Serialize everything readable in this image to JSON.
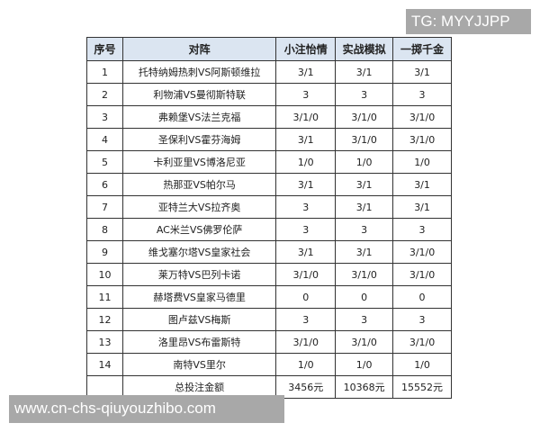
{
  "overlay_tag": "TG: MYYJJPP",
  "website": "www.cn-chs-qiuyouzhibo.com",
  "colors": {
    "header_bg": "#dbe5f1",
    "overlay_bg": "#a8a8a8"
  },
  "table": {
    "headers": [
      "序号",
      "对阵",
      "小注怡情",
      "实战模拟",
      "一掷千金"
    ],
    "rows": [
      [
        "1",
        "托特纳姆热刺VS阿斯顿维拉",
        "3/1",
        "3/1",
        "3/1"
      ],
      [
        "2",
        "利物浦VS曼彻斯特联",
        "3",
        "3",
        "3"
      ],
      [
        "3",
        "弗赖堡VS法兰克福",
        "3/1/0",
        "3/1/0",
        "3/1/0"
      ],
      [
        "4",
        "圣保利VS霍芬海姆",
        "3/1",
        "3/1/0",
        "3/1/0"
      ],
      [
        "5",
        "卡利亚里VS博洛尼亚",
        "1/0",
        "1/0",
        "1/0"
      ],
      [
        "6",
        "热那亚VS帕尔马",
        "3/1",
        "3/1",
        "3/1"
      ],
      [
        "7",
        "亚特兰大VS拉齐奥",
        "3",
        "3/1",
        "3/1"
      ],
      [
        "8",
        "AC米兰VS佛罗伦萨",
        "3",
        "3",
        "3"
      ],
      [
        "9",
        "维戈塞尔塔VS皇家社会",
        "3/1",
        "3/1",
        "3/1/0"
      ],
      [
        "10",
        "莱万特VS巴列卡诺",
        "3/1/0",
        "3/1/0",
        "3/1/0"
      ],
      [
        "11",
        "赫塔费VS皇家马德里",
        "0",
        "0",
        "0"
      ],
      [
        "12",
        "图卢兹VS梅斯",
        "3",
        "3",
        "3"
      ],
      [
        "13",
        "洛里昂VS布雷斯特",
        "3/1/0",
        "3/1/0",
        "3/1/0"
      ],
      [
        "14",
        "南特VS里尔",
        "1/0",
        "1/0",
        "1/0"
      ]
    ],
    "total": [
      "",
      "总投注金额",
      "3456元",
      "10368元",
      "15552元"
    ]
  }
}
